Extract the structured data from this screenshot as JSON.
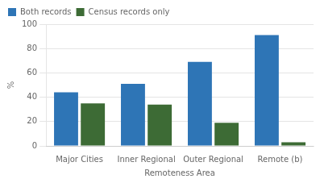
{
  "chart_data": {
    "type": "bar",
    "categories": [
      "Major Cities",
      "Inner Regional",
      "Outer Regional",
      "Remote (b)"
    ],
    "series": [
      {
        "name": "Both records",
        "color": "#2E75B6",
        "values": [
          44,
          51,
          69,
          91
        ]
      },
      {
        "name": "Census records only",
        "color": "#3D6B35",
        "values": [
          35,
          34,
          19,
          3
        ]
      }
    ],
    "xlabel": "Remoteness Area",
    "ylabel": "%",
    "ylim": [
      0,
      100
    ],
    "yticks": [
      0,
      20,
      40,
      60,
      80,
      100
    ],
    "grid": true,
    "legend": "upper left"
  }
}
